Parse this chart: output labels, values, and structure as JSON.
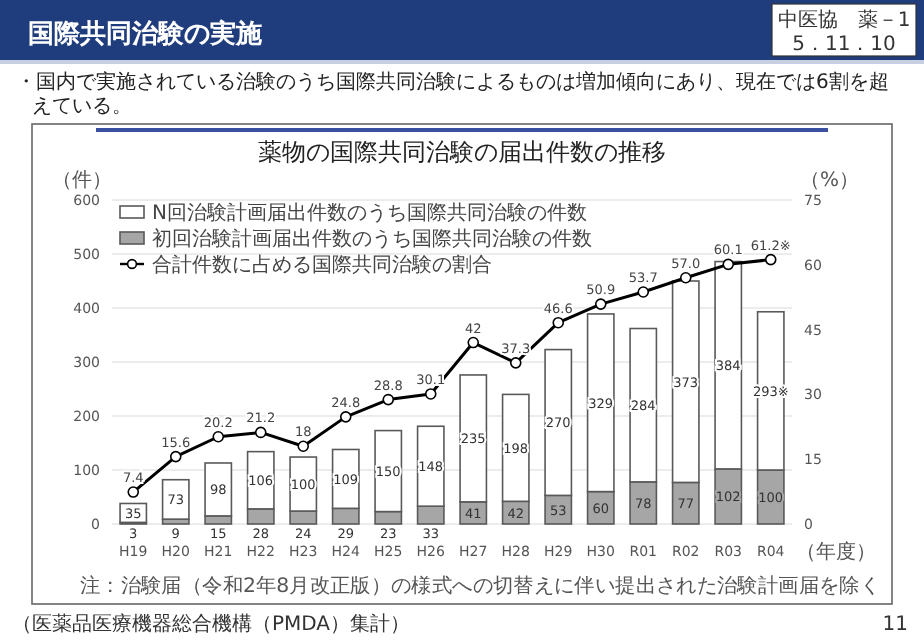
{
  "chart_data": {
    "type": "bar",
    "title": "薬物の国際共同治験の届出件数の推移",
    "subtitle": "・国内で実施されている治験のうち国際共同治験によるものは増加傾向にあり、現在では6割を超えている。",
    "xlabel": "（年度）",
    "ylabel": "（件）",
    "y2label": "（%）",
    "annotations": [
      "国際共同治験の実施",
      "中医協　薬－1",
      "5．11．10",
      "注：治験届（令和2年8月改正版）の様式への切替えに伴い提出された治験計画届を除く",
      "（医薬品医療機器総合機構（PMDA）集計）",
      "11"
    ],
    "categories": [
      "H19",
      "H20",
      "H21",
      "H22",
      "H23",
      "H24",
      "H25",
      "H26",
      "H27",
      "H28",
      "H29",
      "H30",
      "R01",
      "R02",
      "R03",
      "R04"
    ],
    "stacked": true,
    "ylim": [
      0,
      600
    ],
    "yticks": [
      0,
      100,
      200,
      300,
      400,
      500,
      600
    ],
    "y2lim": [
      0,
      75
    ],
    "y2ticks": [
      0,
      15,
      30,
      45,
      60,
      75
    ],
    "grid": "y",
    "legend": "top left",
    "marker": "circle",
    "line_style": "solid",
    "series": [
      {
        "name": "初回治験計画届出件数のうち国際共同治験の件数",
        "color": "#a6a6a6",
        "values": [
          3,
          9,
          15,
          28,
          24,
          29,
          23,
          33,
          41,
          42,
          53,
          60,
          78,
          77,
          102,
          100
        ],
        "value_labels": [
          "3",
          "9",
          "15",
          "28",
          "24",
          "29",
          "23",
          "33",
          "41",
          "42",
          "53",
          "60",
          "78",
          "77",
          "102",
          "100"
        ]
      },
      {
        "name": "N回治験計画届出件数のうち国際共同治験の件数",
        "color": "#ffffff",
        "values": [
          35,
          73,
          98,
          106,
          100,
          109,
          150,
          148,
          235,
          198,
          270,
          329,
          284,
          373,
          384,
          293
        ],
        "value_labels": [
          "35",
          "73",
          "98",
          "106",
          "100",
          "109",
          "150",
          "148",
          "235",
          "198",
          "270",
          "329",
          "284",
          "373",
          "384",
          "293※"
        ]
      },
      {
        "name": "合計件数に占める国際共同治験の割合",
        "type": "line",
        "axis": "y2",
        "color": "#000000",
        "values": [
          7.4,
          15.6,
          20.2,
          21.2,
          18,
          24.8,
          28.8,
          30.1,
          42,
          37.3,
          46.6,
          50.9,
          53.7,
          57.0,
          60.1,
          61.2
        ],
        "value_labels": [
          "7.4",
          "15.6",
          "20.2",
          "21.2",
          "18",
          "24.8",
          "28.8",
          "30.1",
          "42",
          "37.3",
          "46.6",
          "50.9",
          "53.7",
          "57.0",
          "60.1",
          "61.2※"
        ]
      }
    ]
  }
}
